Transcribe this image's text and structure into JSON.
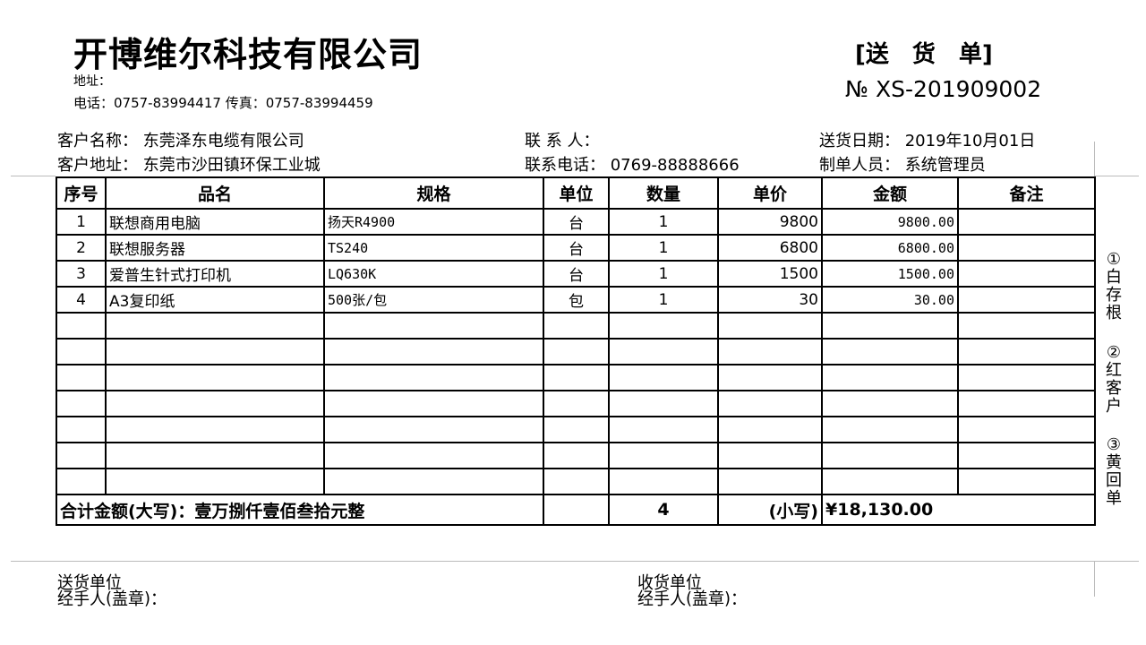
{
  "header": {
    "company": "开博维尔科技有限公司",
    "address_label": "地址：",
    "phone_fax": "电话：0757-83994417  传真：0757-83994459",
    "doc_title": "[送　货　单]",
    "doc_no": "№  XS-201909002"
  },
  "info": {
    "customer_name": "客户名称：  东莞泽东电缆有限公司",
    "customer_address": "客户地址：  东莞市沙田镇环保工业城",
    "contact": "联 系 人：",
    "contact_phone": "联系电话：  0769-88888666",
    "delivery_date": "送货日期：  2019年10月01日",
    "preparer": "制单人员：  系统管理员"
  },
  "table": {
    "headers": [
      "序号",
      "品名",
      "规格",
      "单位",
      "数量",
      "单价",
      "金额",
      "备注"
    ],
    "rows": [
      [
        "1",
        "联想商用电脑",
        "扬天R4900",
        "台",
        "1",
        "9800",
        "9800.00",
        ""
      ],
      [
        "2",
        "联想服务器",
        "TS240",
        "台",
        "1",
        "6800",
        "6800.00",
        ""
      ],
      [
        "3",
        "爱普生针式打印机",
        "LQ630K",
        "台",
        "1",
        "1500",
        "1500.00",
        ""
      ],
      [
        "4",
        "A3复印纸",
        "500张/包",
        "包",
        "1",
        "30",
        "30.00",
        ""
      ]
    ],
    "total_label": "合计金额(大写)：壹万捌仟壹佰叁拾元整",
    "total_qty": "4",
    "small_label": "(小写)",
    "total_amount": "¥18,130.00"
  },
  "side": {
    "copy1": "①白存根",
    "copy2": "②红客户",
    "copy3": "③黄回单"
  },
  "footer": {
    "sender_unit": "送货单位",
    "sender_handler": "经手人(盖章)：",
    "receiver_unit": "收货单位",
    "receiver_handler": "经手人(盖章)："
  }
}
